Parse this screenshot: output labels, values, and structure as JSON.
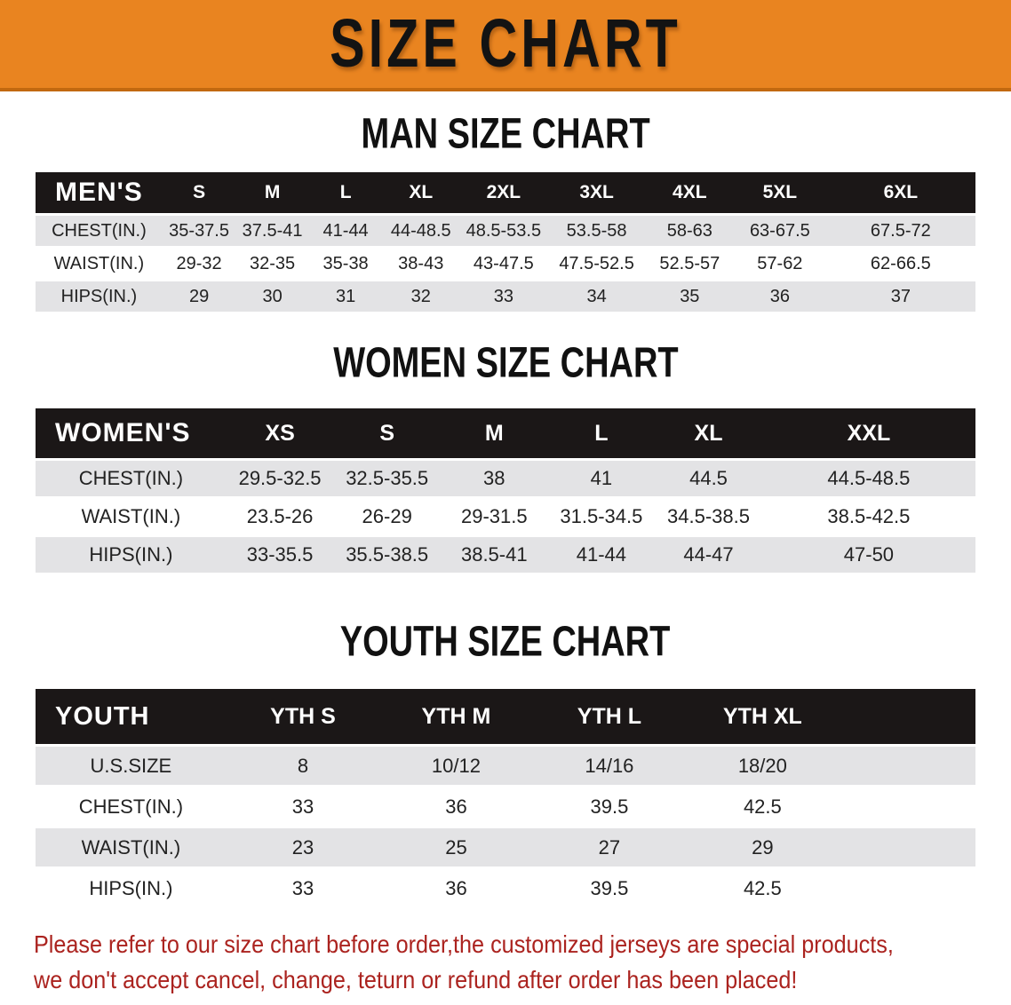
{
  "banner": {
    "title": "SIZE CHART",
    "bg_color": "#e98420",
    "edge_color": "#c2690f",
    "text_color": "#131313"
  },
  "sections": [
    {
      "heading": "MAN SIZE CHART",
      "table": {
        "header_label": "MEN'S",
        "columns": [
          "S",
          "M",
          "L",
          "XL",
          "2XL",
          "3XL",
          "4XL",
          "5XL",
          "6XL"
        ],
        "rows": [
          {
            "label": "CHEST(IN.)",
            "values": [
              "35-37.5",
              "37.5-41",
              "41-44",
              "44-48.5",
              "48.5-53.5",
              "53.5-58",
              "58-63",
              "63-67.5",
              "67.5-72"
            ]
          },
          {
            "label": "WAIST(IN.)",
            "values": [
              "29-32",
              "32-35",
              "35-38",
              "38-43",
              "43-47.5",
              "47.5-52.5",
              "52.5-57",
              "57-62",
              "62-66.5"
            ]
          },
          {
            "label": "HIPS(IN.)",
            "values": [
              "29",
              "30",
              "31",
              "32",
              "33",
              "34",
              "35",
              "36",
              "37"
            ]
          }
        ]
      }
    },
    {
      "heading": "WOMEN SIZE CHART",
      "table": {
        "header_label": "WOMEN'S",
        "columns": [
          "XS",
          "S",
          "M",
          "L",
          "XL",
          "XXL"
        ],
        "rows": [
          {
            "label": "CHEST(IN.)",
            "values": [
              "29.5-32.5",
              "32.5-35.5",
              "38",
              "41",
              "44.5",
              "44.5-48.5"
            ]
          },
          {
            "label": "WAIST(IN.)",
            "values": [
              "23.5-26",
              "26-29",
              "29-31.5",
              "31.5-34.5",
              "34.5-38.5",
              "38.5-42.5"
            ]
          },
          {
            "label": "HIPS(IN.)",
            "values": [
              "33-35.5",
              "35.5-38.5",
              "38.5-41",
              "41-44",
              "44-47",
              "47-50"
            ]
          }
        ]
      }
    },
    {
      "heading": "YOUTH SIZE CHART",
      "table": {
        "header_label": "YOUTH",
        "columns": [
          "YTH S",
          "YTH M",
          "YTH L",
          "YTH XL"
        ],
        "rows": [
          {
            "label": "U.S.SIZE",
            "values": [
              "8",
              "10/12",
              "14/16",
              "18/20"
            ]
          },
          {
            "label": "CHEST(IN.)",
            "values": [
              "33",
              "36",
              "39.5",
              "42.5"
            ]
          },
          {
            "label": "WAIST(IN.)",
            "values": [
              "23",
              "25",
              "27",
              "29"
            ]
          },
          {
            "label": "HIPS(IN.)",
            "values": [
              "33",
              "36",
              "39.5",
              "42.5"
            ]
          }
        ]
      }
    }
  ],
  "disclaimer": {
    "line1": "Please refer to our size chart before order,the customized jerseys are special products,",
    "line2": "we don't accept cancel, change, teturn or refund after order has been placed!",
    "color": "#ab231f"
  },
  "table_row_stripe_color": "#e3e3e5",
  "table_header_color": "#1b1717"
}
